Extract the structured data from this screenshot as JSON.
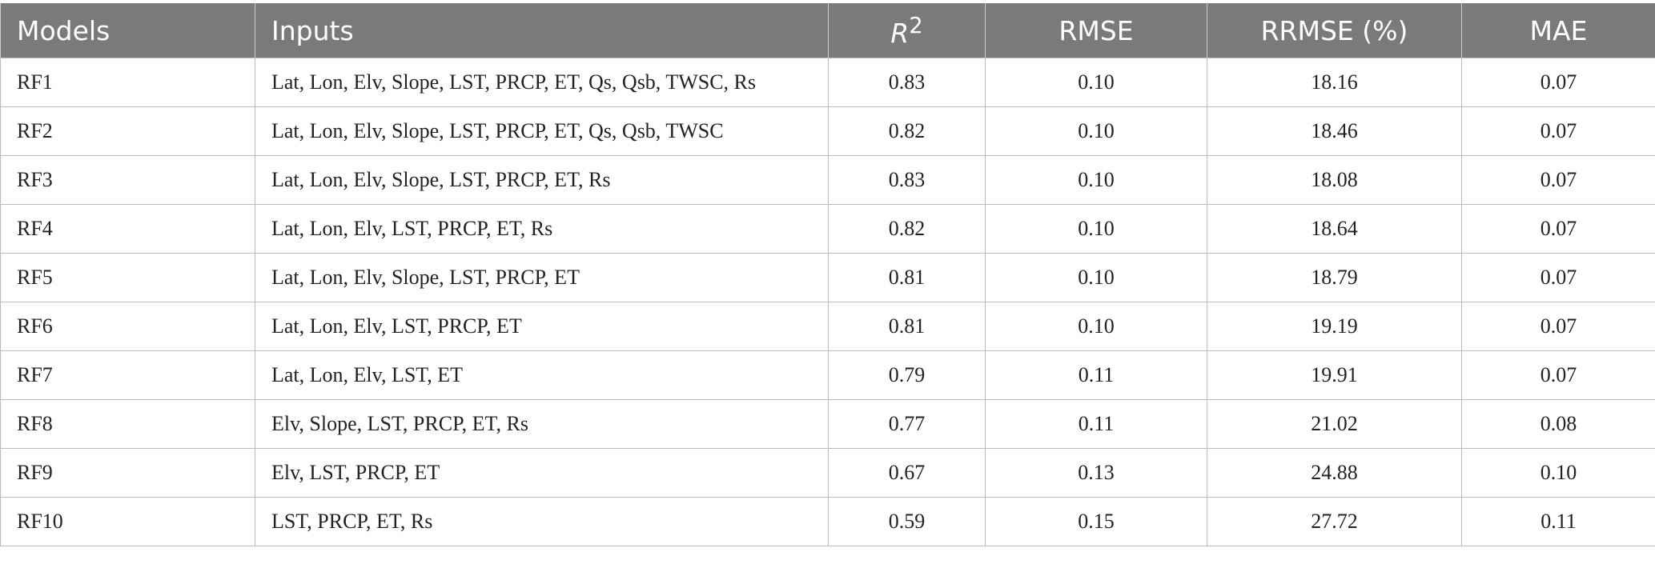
{
  "table": {
    "headers": {
      "models": "Models",
      "inputs": "Inputs",
      "r2_base": "R",
      "r2_sup": "2",
      "rmse": "RMSE",
      "rrmse": "RRMSE (%)",
      "mae": "MAE"
    },
    "rows": [
      {
        "model": "RF1",
        "inputs": "Lat, Lon, Elv, Slope, LST, PRCP, ET, Qs, Qsb, TWSC, Rs",
        "r2": "0.83",
        "rmse": "0.10",
        "rrmse": "18.16",
        "mae": "0.07"
      },
      {
        "model": "RF2",
        "inputs": "Lat, Lon, Elv, Slope, LST, PRCP, ET, Qs, Qsb, TWSC",
        "r2": "0.82",
        "rmse": "0.10",
        "rrmse": "18.46",
        "mae": "0.07"
      },
      {
        "model": "RF3",
        "inputs": "Lat, Lon, Elv, Slope, LST, PRCP, ET, Rs",
        "r2": "0.83",
        "rmse": "0.10",
        "rrmse": "18.08",
        "mae": "0.07"
      },
      {
        "model": "RF4",
        "inputs": "Lat, Lon, Elv, LST, PRCP, ET, Rs",
        "r2": "0.82",
        "rmse": "0.10",
        "rrmse": "18.64",
        "mae": "0.07"
      },
      {
        "model": "RF5",
        "inputs": "Lat, Lon, Elv, Slope, LST, PRCP, ET",
        "r2": "0.81",
        "rmse": "0.10",
        "rrmse": "18.79",
        "mae": "0.07"
      },
      {
        "model": "RF6",
        "inputs": "Lat, Lon, Elv, LST, PRCP, ET",
        "r2": "0.81",
        "rmse": "0.10",
        "rrmse": "19.19",
        "mae": "0.07"
      },
      {
        "model": "RF7",
        "inputs": "Lat, Lon, Elv, LST, ET",
        "r2": "0.79",
        "rmse": "0.11",
        "rrmse": "19.91",
        "mae": "0.07"
      },
      {
        "model": "RF8",
        "inputs": "Elv, Slope, LST, PRCP, ET, Rs",
        "r2": "0.77",
        "rmse": "0.11",
        "rrmse": "21.02",
        "mae": "0.08"
      },
      {
        "model": "RF9",
        "inputs": "Elv, LST, PRCP, ET",
        "r2": "0.67",
        "rmse": "0.13",
        "rrmse": "24.88",
        "mae": "0.10"
      },
      {
        "model": "RF10",
        "inputs": "LST, PRCP, ET, Rs",
        "r2": "0.59",
        "rmse": "0.15",
        "rrmse": "27.72",
        "mae": "0.11"
      }
    ]
  }
}
